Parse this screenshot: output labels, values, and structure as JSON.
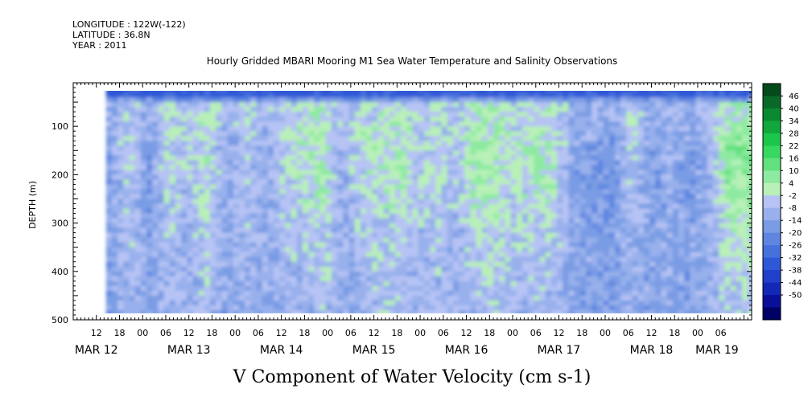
{
  "header": {
    "longitude": "LONGITUDE : 122W(-122)",
    "latitude": "LATITUDE : 36.8N",
    "year": "YEAR : 2011"
  },
  "chart_data": {
    "type": "heatmap",
    "title": "Hourly Gridded MBARI Mooring M1 Sea Water Temperature and Salinity Observations",
    "xlabel": "V Component of Water Velocity (cm s-1)",
    "ylabel": "DEPTH (m)",
    "xlim_hours_from_mar12_00": [
      6,
      182
    ],
    "data_hours_from_mar12_00": [
      14.5,
      182
    ],
    "ylim": [
      500,
      10
    ],
    "data_depth_range": [
      20,
      485
    ],
    "y_ticks": [
      100,
      200,
      300,
      400,
      500
    ],
    "x_hour_ticks": [
      {
        "h": 12,
        "label": "12"
      },
      {
        "h": 18,
        "label": "18"
      },
      {
        "h": 24,
        "label": "00"
      },
      {
        "h": 30,
        "label": "06"
      },
      {
        "h": 36,
        "label": "12"
      },
      {
        "h": 42,
        "label": "18"
      },
      {
        "h": 48,
        "label": "00"
      },
      {
        "h": 54,
        "label": "06"
      },
      {
        "h": 60,
        "label": "12"
      },
      {
        "h": 66,
        "label": "18"
      },
      {
        "h": 72,
        "label": "00"
      },
      {
        "h": 78,
        "label": "06"
      },
      {
        "h": 84,
        "label": "12"
      },
      {
        "h": 90,
        "label": "18"
      },
      {
        "h": 96,
        "label": "00"
      },
      {
        "h": 102,
        "label": "06"
      },
      {
        "h": 108,
        "label": "12"
      },
      {
        "h": 114,
        "label": "18"
      },
      {
        "h": 120,
        "label": "00"
      },
      {
        "h": 126,
        "label": "06"
      },
      {
        "h": 132,
        "label": "12"
      },
      {
        "h": 138,
        "label": "18"
      },
      {
        "h": 144,
        "label": "00"
      },
      {
        "h": 150,
        "label": "06"
      },
      {
        "h": 156,
        "label": "12"
      },
      {
        "h": 162,
        "label": "18"
      },
      {
        "h": 168,
        "label": "00"
      },
      {
        "h": 174,
        "label": "06"
      }
    ],
    "x_day_labels": [
      {
        "h": 12,
        "label": "MAR 12"
      },
      {
        "h": 36,
        "label": "MAR 13"
      },
      {
        "h": 60,
        "label": "MAR 14"
      },
      {
        "h": 84,
        "label": "MAR 15"
      },
      {
        "h": 108,
        "label": "MAR 16"
      },
      {
        "h": 132,
        "label": "MAR 17"
      },
      {
        "h": 156,
        "label": "MAR 18"
      },
      {
        "h": 173,
        "label": "MAR 19"
      }
    ],
    "colorbar": {
      "levels": [
        -50,
        -44,
        -38,
        -32,
        -26,
        -20,
        -14,
        -8,
        -2,
        4,
        10,
        16,
        22,
        28,
        34,
        40,
        46
      ],
      "labels": [
        "46",
        "40",
        "34",
        "28",
        "22",
        "16",
        "10",
        "4",
        "-2",
        "-8",
        "-14",
        "-20",
        "-26",
        "-32",
        "-38",
        "-44",
        "-50"
      ]
    },
    "column_profiles": [
      {
        "h": 15,
        "mean": -5
      },
      {
        "h": 20,
        "mean": 4
      },
      {
        "h": 25,
        "mean": -6
      },
      {
        "h": 30,
        "mean": 5
      },
      {
        "h": 35,
        "mean": 0
      },
      {
        "h": 40,
        "mean": 6
      },
      {
        "h": 45,
        "mean": -4
      },
      {
        "h": 50,
        "mean": 2
      },
      {
        "h": 55,
        "mean": -3
      },
      {
        "h": 60,
        "mean": 3
      },
      {
        "h": 65,
        "mean": 5
      },
      {
        "h": 70,
        "mean": 8
      },
      {
        "h": 75,
        "mean": -2
      },
      {
        "h": 80,
        "mean": 4
      },
      {
        "h": 85,
        "mean": 6
      },
      {
        "h": 90,
        "mean": 7
      },
      {
        "h": 95,
        "mean": 2
      },
      {
        "h": 100,
        "mean": 5
      },
      {
        "h": 105,
        "mean": 0
      },
      {
        "h": 110,
        "mean": 9
      },
      {
        "h": 115,
        "mean": 8
      },
      {
        "h": 120,
        "mean": 4
      },
      {
        "h": 125,
        "mean": 7
      },
      {
        "h": 130,
        "mean": 6
      },
      {
        "h": 135,
        "mean": -4
      },
      {
        "h": 140,
        "mean": -6
      },
      {
        "h": 145,
        "mean": -8
      },
      {
        "h": 150,
        "mean": 2
      },
      {
        "h": 155,
        "mean": -5
      },
      {
        "h": 160,
        "mean": -3
      },
      {
        "h": 165,
        "mean": -6
      },
      {
        "h": 170,
        "mean": -2
      },
      {
        "h": 175,
        "mean": 10
      },
      {
        "h": 180,
        "mean": 12
      }
    ]
  }
}
